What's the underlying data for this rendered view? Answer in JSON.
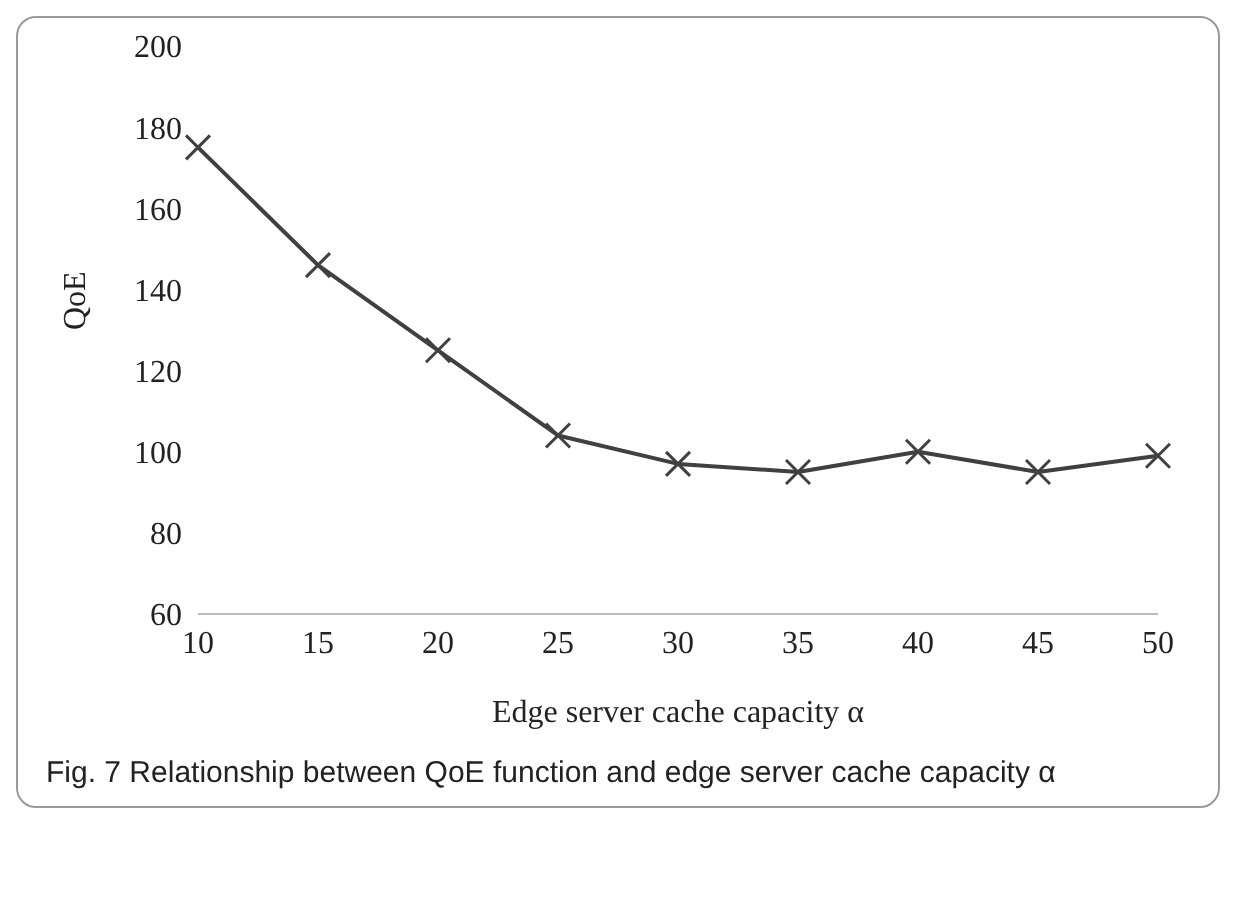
{
  "chart_data": {
    "type": "line",
    "xlabel": "Edge server cache capacity α",
    "ylabel": "QoE",
    "categories": [
      "10",
      "15",
      "20",
      "25",
      "30",
      "35",
      "40",
      "45",
      "50"
    ],
    "series": [
      {
        "color": "#404040",
        "values": [
          175,
          146,
          125,
          104,
          97,
          95,
          100,
          95,
          99
        ]
      }
    ],
    "ylim": [
      60,
      200
    ],
    "yticks": [
      60,
      80,
      100,
      120,
      140,
      160,
      180,
      200
    ],
    "grid": false,
    "legend": false,
    "marker": "cross",
    "line_style": "solid",
    "annotations": [
      "Fig. 7 Relationship between QoE function and edge server cache capacity α"
    ]
  }
}
